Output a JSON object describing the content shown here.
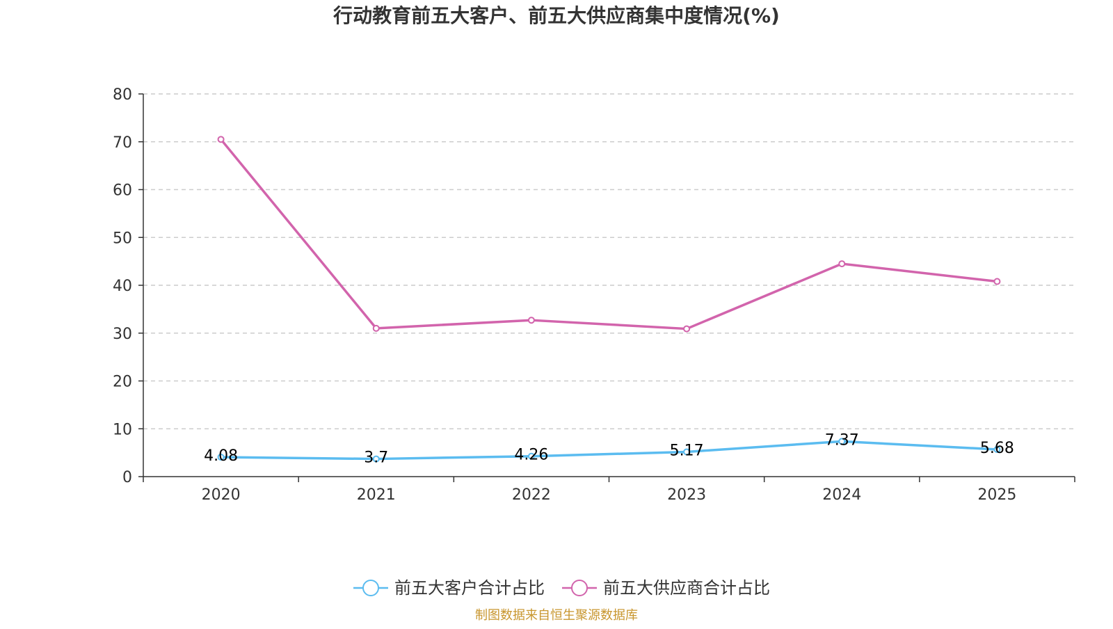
{
  "chart_data": {
    "type": "line",
    "title": "行动教育前五大客户、前五大供应商集中度情况(%)",
    "categories": [
      "2020",
      "2021",
      "2022",
      "2023",
      "2024",
      "2025"
    ],
    "ylim": [
      0,
      80
    ],
    "yticks": [
      0,
      10,
      20,
      30,
      40,
      50,
      60,
      70,
      80
    ],
    "grid": true,
    "legend_position": "bottom",
    "series": [
      {
        "name": "前五大客户合计占比",
        "values": [
          4.08,
          3.7,
          4.26,
          5.17,
          7.37,
          5.68
        ],
        "labels": [
          "4.08",
          "3.7",
          "4.26",
          "5.17",
          "7.37",
          "5.68"
        ],
        "color": "#5bbcf0"
      },
      {
        "name": "前五大供应商合计占比",
        "values": [
          70.5,
          31.0,
          32.7,
          30.9,
          44.5,
          40.8
        ],
        "color": "#d264ac"
      }
    ],
    "source": "制图数据来自恒生聚源数据库"
  }
}
